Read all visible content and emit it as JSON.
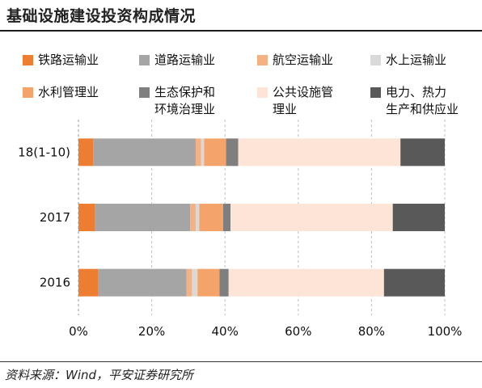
{
  "page": {
    "title": "基础设施建设投资构成情况",
    "source": "资料来源：Wind，平安证券研究所"
  },
  "chart_data": {
    "type": "bar",
    "orientation": "horizontal",
    "stacked": "percent",
    "categories": [
      "18(1-10)",
      "2017",
      "2016"
    ],
    "xlim": [
      0,
      100
    ],
    "x_ticks": [
      "0%",
      "20%",
      "40%",
      "60%",
      "80%",
      "100%"
    ],
    "grid": true,
    "legend_position": "top",
    "series": [
      {
        "name": "铁路运输业",
        "color": "#ED7D31",
        "values": [
          4.0,
          4.5,
          5.3
        ]
      },
      {
        "name": "道路运输业",
        "color": "#A5A5A5",
        "values": [
          28.0,
          26.0,
          24.2
        ]
      },
      {
        "name": "航空运输业",
        "color": "#F4B183",
        "values": [
          1.5,
          1.5,
          1.5
        ]
      },
      {
        "name": "水上运输业",
        "color": "#D9D9D9",
        "values": [
          0.8,
          1.0,
          1.5
        ]
      },
      {
        "name": "水利管理业",
        "color": "#F4A46A",
        "values": [
          6.0,
          6.5,
          6.0
        ]
      },
      {
        "name": "生态保护和\n环境治理业",
        "color": "#7F7F7F",
        "values": [
          3.3,
          2.0,
          2.5
        ]
      },
      {
        "name": "公共设施管\n理业",
        "color": "#FCE4D6",
        "values": [
          44.3,
          44.3,
          42.4
        ]
      },
      {
        "name": "电力、热力\n生产和供应业",
        "color": "#595959",
        "values": [
          12.1,
          14.2,
          16.6
        ]
      }
    ]
  }
}
